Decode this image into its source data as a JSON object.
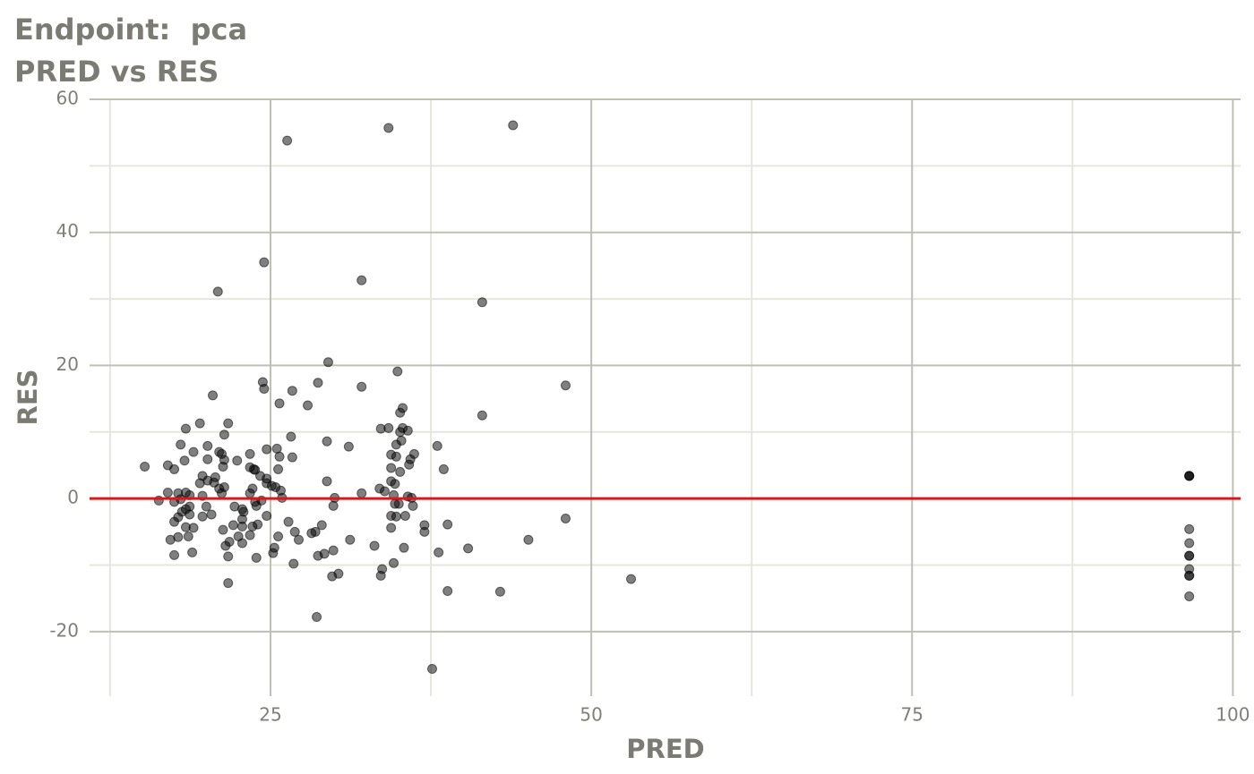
{
  "chart_data": {
    "type": "scatter",
    "title": "Endpoint:  pca",
    "subtitle": "PRED vs RES",
    "x_label": "PRED",
    "y_label": "RES",
    "color": "#000000",
    "hline": {
      "value": 0,
      "color": "#d7191c"
    },
    "xlim": [
      10.9,
      100.6
    ],
    "ylim": [
      -29.7,
      60
    ],
    "xticks": [
      25,
      50,
      75,
      100
    ],
    "yticks": [
      -20,
      0,
      20,
      40,
      60
    ],
    "x_minor_ticks": [
      12.5,
      37.5,
      62.5,
      87.5
    ],
    "y_minor_ticks": [
      -10,
      10,
      30,
      50
    ],
    "grid": true,
    "x": [
      26.3,
      34.2,
      43.9,
      24.5,
      20.9,
      32.1,
      41.5,
      29.5,
      34.9,
      24.4,
      24.5,
      28.7,
      32.1,
      48.0,
      20.5,
      25.7,
      26.7,
      27.9,
      35.3,
      35.1,
      41.5,
      19.5,
      18.4,
      21.7,
      33.6,
      34.2,
      35.3,
      35.7,
      35.1,
      21.4,
      26.6,
      29.4,
      35.2,
      18.0,
      20.1,
      31.1,
      38.0,
      34.8,
      24.7,
      25.5,
      19.0,
      21.0,
      21.2,
      23.4,
      34.4,
      34.8,
      36.2,
      35.9,
      26.7,
      25.7,
      20.1,
      18.3,
      21.4,
      22.4,
      35.8,
      15.2,
      17.0,
      17.5,
      21.3,
      23.4,
      23.7,
      23.8,
      25.6,
      34.4,
      35.1,
      38.5,
      19.7,
      20.7,
      24.2,
      24.7,
      20.1,
      20.6,
      19.5,
      29.4,
      34.4,
      34.7,
      24.7,
      25.1,
      25.4,
      21.0,
      21.4,
      23.6,
      25.8,
      33.5,
      33.9,
      32.1,
      17.0,
      17.8,
      18.4,
      18.7,
      21.2,
      23.4,
      34.6,
      35.7,
      25.9,
      30.0,
      16.3,
      17.5,
      18.0,
      19.7,
      36.0,
      24.3,
      23.8,
      29.9,
      34.7,
      35.0,
      36.1,
      18.7,
      20.0,
      22.2,
      23.9,
      22.8,
      18.4,
      18.1,
      22.9,
      20.4,
      19.7,
      34.4,
      34.8,
      35.5,
      24.7,
      18.7,
      48.0,
      17.8,
      22.8,
      26.4,
      17.5,
      29.0,
      37.0,
      38.8,
      24.0,
      22.1,
      22.8,
      18.4,
      19.0,
      34.4,
      21.3,
      23.6,
      26.9,
      28.5,
      28.2,
      37.0,
      18.6,
      17.8,
      25.6,
      22.5,
      23.4,
      17.2,
      45.1,
      31.2,
      27.2,
      21.8,
      22.8,
      21.5,
      33.1,
      35.4,
      40.4,
      25.3,
      29.9,
      18.9,
      25.2,
      38.1,
      17.5,
      21.7,
      28.7,
      29.2,
      23.9,
      26.8,
      34.6,
      33.7,
      30.3,
      29.8,
      33.6,
      53.1,
      21.7,
      38.8,
      42.9,
      28.6,
      37.6,
      96.6,
      96.6,
      96.6,
      96.6,
      96.6,
      96.6,
      96.6,
      96.6,
      96.6,
      96.6,
      96.6
    ],
    "values": [
      53.8,
      55.7,
      56.1,
      35.5,
      31.1,
      32.8,
      29.5,
      20.5,
      19.1,
      17.5,
      16.5,
      17.4,
      16.8,
      17.0,
      15.5,
      14.3,
      16.2,
      14.0,
      13.6,
      12.9,
      12.5,
      11.3,
      10.5,
      11.3,
      10.5,
      10.6,
      10.6,
      10.2,
      10.0,
      9.6,
      9.3,
      8.6,
      8.7,
      8.1,
      7.9,
      7.8,
      7.9,
      8.1,
      7.4,
      7.5,
      7.0,
      7.0,
      6.7,
      6.7,
      6.6,
      6.3,
      6.7,
      5.9,
      6.2,
      6.3,
      5.9,
      5.7,
      5.8,
      5.7,
      5.1,
      4.8,
      5.0,
      4.4,
      4.8,
      4.7,
      4.4,
      4.3,
      4.4,
      4.6,
      4.0,
      4.4,
      3.4,
      3.2,
      3.4,
      3.0,
      2.7,
      2.4,
      2.3,
      2.6,
      2.6,
      2.2,
      2.3,
      1.9,
      1.7,
      1.5,
      1.7,
      1.5,
      1.2,
      1.5,
      1.1,
      0.8,
      0.9,
      0.8,
      0.9,
      0.5,
      0.8,
      0.8,
      0.5,
      0.3,
      0.1,
      0.1,
      -0.3,
      -0.5,
      -0.1,
      0.4,
      0.1,
      -0.3,
      -0.5,
      -1.1,
      -0.8,
      -0.8,
      -1.1,
      -1.2,
      -1.2,
      -1.2,
      -1.1,
      -1.6,
      -1.6,
      -2.0,
      -2.0,
      -2.4,
      -2.7,
      -2.6,
      -2.7,
      -2.6,
      -2.6,
      -2.4,
      -3.0,
      -2.8,
      -3.1,
      -3.5,
      -3.5,
      -4.0,
      -4.0,
      -3.9,
      -3.9,
      -4.0,
      -4.2,
      -4.3,
      -4.4,
      -4.4,
      -4.7,
      -4.2,
      -5.0,
      -5.0,
      -5.2,
      -5.0,
      -5.7,
      -5.8,
      -5.7,
      -5.7,
      -5.5,
      -6.2,
      -6.2,
      -6.2,
      -6.2,
      -6.5,
      -6.7,
      -7.1,
      -7.1,
      -7.4,
      -7.5,
      -7.4,
      -7.8,
      -8.1,
      -8.2,
      -8.1,
      -8.5,
      -8.7,
      -8.6,
      -8.3,
      -8.9,
      -9.8,
      -9.7,
      -10.6,
      -11.3,
      -11.7,
      -11.6,
      -12.1,
      -12.7,
      -13.9,
      -14.0,
      -17.8,
      -25.6,
      3.4,
      3.4,
      3.4,
      -4.6,
      -6.7,
      -8.6,
      -8.6,
      -10.6,
      -11.6,
      -11.6,
      -14.7
    ]
  }
}
